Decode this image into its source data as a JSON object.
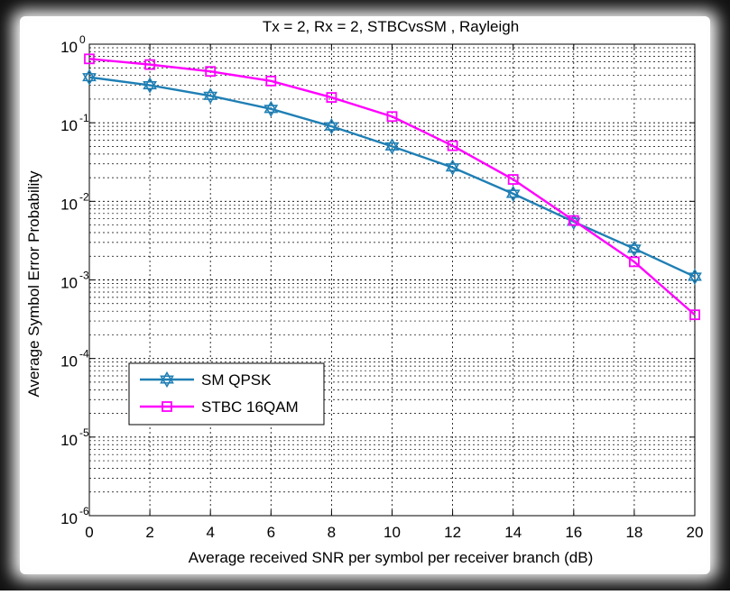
{
  "chart_data": {
    "type": "line",
    "title": "Tx = 2, Rx = 2, STBCvsSM , Rayleigh",
    "xlabel": "Average received SNR per symbol per receiver branch (dB)",
    "ylabel": "Average Symbol Error Probability",
    "x": [
      0,
      2,
      4,
      6,
      8,
      10,
      12,
      14,
      16,
      18,
      20
    ],
    "xlim": [
      0,
      20
    ],
    "ylim": [
      1e-06,
      1
    ],
    "yscale": "log",
    "grid": true,
    "legend_position": "lower-left",
    "x_ticks": [
      "0",
      "2",
      "4",
      "6",
      "8",
      "10",
      "12",
      "14",
      "16",
      "18",
      "20"
    ],
    "y_ticks": [
      {
        "base": "10",
        "exp": "0"
      },
      {
        "base": "10",
        "exp": "-1"
      },
      {
        "base": "10",
        "exp": "-2"
      },
      {
        "base": "10",
        "exp": "-3"
      },
      {
        "base": "10",
        "exp": "-4"
      },
      {
        "base": "10",
        "exp": "-5"
      },
      {
        "base": "10",
        "exp": "-6"
      }
    ],
    "series": [
      {
        "name": "SM QPSK",
        "color": "#1f7fb4",
        "marker": "hexagram",
        "values": [
          0.38,
          0.3,
          0.22,
          0.15,
          0.09,
          0.05,
          0.027,
          0.0125,
          0.0055,
          0.0025,
          0.0011
        ]
      },
      {
        "name": "STBC 16QAM",
        "color": "#ff00ff",
        "marker": "square",
        "values": [
          0.65,
          0.55,
          0.45,
          0.34,
          0.21,
          0.12,
          0.051,
          0.019,
          0.0057,
          0.0017,
          0.00036
        ]
      }
    ]
  }
}
